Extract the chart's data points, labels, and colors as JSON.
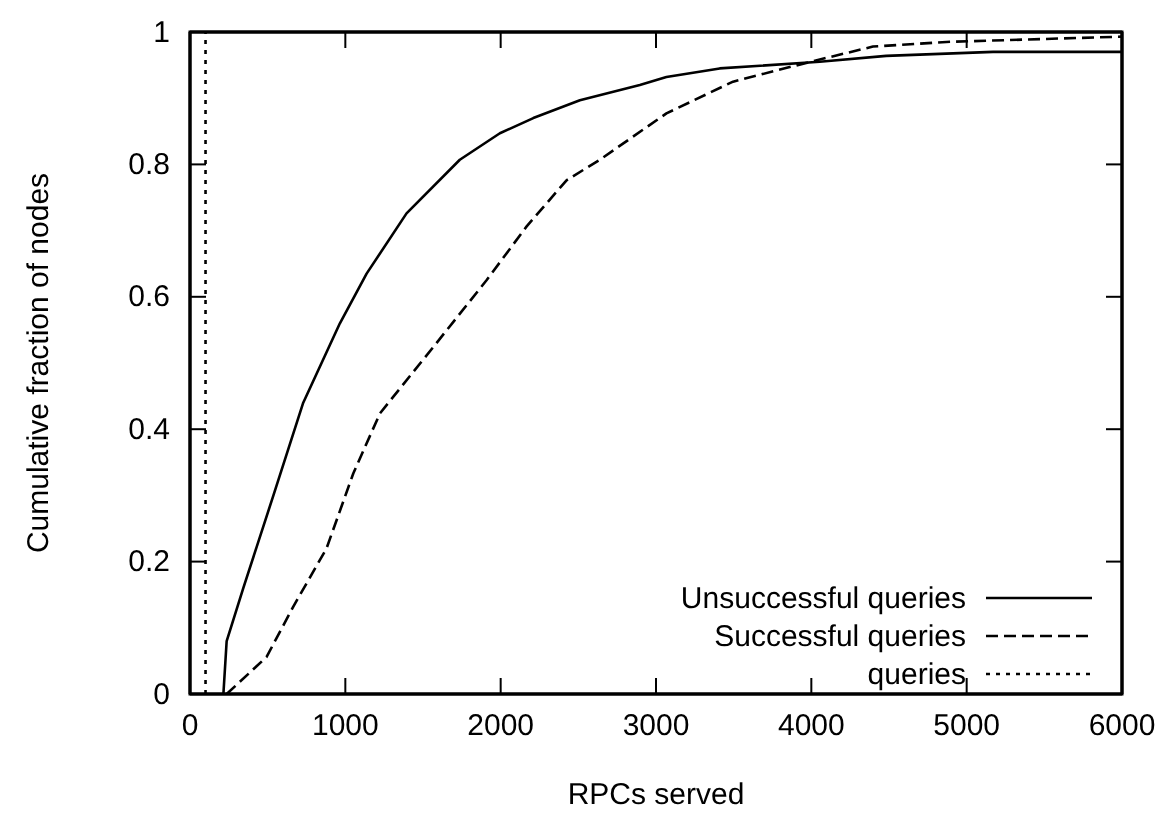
{
  "chart_data": {
    "type": "line",
    "xlabel": "RPCs served",
    "ylabel": "Cumulative fraction of nodes",
    "xlim": [
      0,
      6000
    ],
    "ylim": [
      0,
      1
    ],
    "xticks": [
      0,
      1000,
      2000,
      3000,
      4000,
      5000,
      6000
    ],
    "yticks": [
      0,
      0.2,
      0.4,
      0.6,
      0.8,
      1
    ],
    "legend": "bottom right",
    "grid": false,
    "marker": "none",
    "series": [
      {
        "name": "Unsuccessful queries",
        "color": "#000000",
        "line_style": "solid",
        "x": [
          215,
          236,
          343,
          537,
          729,
          965,
          1137,
          1394,
          1737,
          1995,
          2210,
          2510,
          2896,
          3067,
          3410,
          4054,
          4482,
          5170,
          6000
        ],
        "values": [
          0,
          0.08,
          0.16,
          0.3,
          0.44,
          0.56,
          0.635,
          0.726,
          0.807,
          0.847,
          0.87,
          0.897,
          0.92,
          0.932,
          0.945,
          0.955,
          0.964,
          0.97,
          0.97
        ]
      },
      {
        "name": "Successful queries",
        "color": "#000000",
        "line_style": "dashed",
        "x": [
          236,
          493,
          665,
          879,
          1051,
          1223,
          1566,
          1909,
          2166,
          2424,
          2638,
          3067,
          3496,
          4011,
          4397,
          4869,
          6000
        ],
        "values": [
          0,
          0.056,
          0.132,
          0.22,
          0.333,
          0.424,
          0.524,
          0.625,
          0.706,
          0.776,
          0.807,
          0.877,
          0.925,
          0.956,
          0.978,
          0.985,
          0.993
        ]
      },
      {
        "name": "queries",
        "color": "#000000",
        "line_style": "dotted",
        "x": [
          100,
          100
        ],
        "values": [
          0,
          1
        ]
      }
    ]
  }
}
